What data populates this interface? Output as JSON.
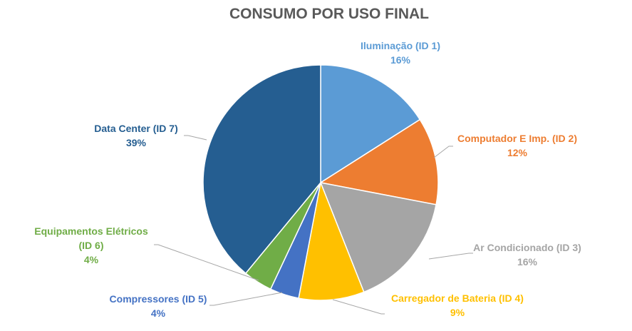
{
  "chart_data": {
    "type": "pie",
    "title": "CONSUMO POR USO FINAL",
    "slices": [
      {
        "label_lines": [
          "Iluminação (ID 1)"
        ],
        "pct_label": "16%",
        "value": 16,
        "color": "#5b9bd5"
      },
      {
        "label_lines": [
          "Computador E Imp. (ID 2)"
        ],
        "pct_label": "12%",
        "value": 12,
        "color": "#ed7d31"
      },
      {
        "label_lines": [
          "Ar Condicionado (ID 3)"
        ],
        "pct_label": "16%",
        "value": 16,
        "color": "#a5a5a5"
      },
      {
        "label_lines": [
          "Carregador de Bateria (ID 4)"
        ],
        "pct_label": "9%",
        "value": 9,
        "color": "#ffc000"
      },
      {
        "label_lines": [
          "Compressores (ID 5)"
        ],
        "pct_label": "4%",
        "value": 4,
        "color": "#4472c4"
      },
      {
        "label_lines": [
          "Equipamentos Elétricos",
          "(ID 6)"
        ],
        "pct_label": "4%",
        "value": 4,
        "color": "#70ad47"
      },
      {
        "label_lines": [
          "Data Center (ID 7)"
        ],
        "pct_label": "39%",
        "value": 39,
        "color": "#255e91"
      }
    ]
  }
}
